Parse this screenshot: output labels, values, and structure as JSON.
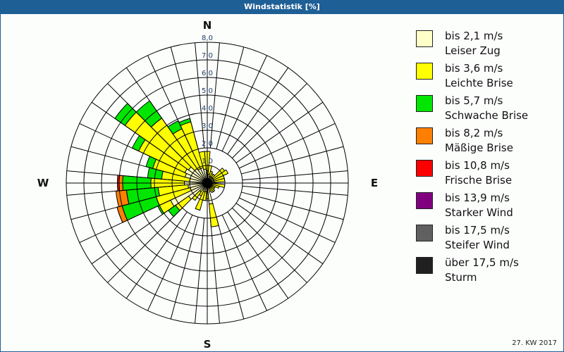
{
  "window": {
    "title": "Windstatistik [%]"
  },
  "footer": {
    "period": "27. KW 2017"
  },
  "compass": {
    "north": "N",
    "east": "E",
    "south": "S",
    "west": "W"
  },
  "chart_data": {
    "type": "wind-rose",
    "title": "Windstatistik [%]",
    "unit": "%",
    "radial_axis": {
      "min": 0,
      "max": 8.0,
      "ticks": [
        "1,0",
        "2,0",
        "3,0",
        "4,0",
        "5,0",
        "6,0",
        "7,0",
        "8,0"
      ],
      "grid": true
    },
    "sector_width_deg": 10,
    "legend_position": "right",
    "classes": [
      {
        "label": "bis 2,1 m/s",
        "name": "Leiser Zug",
        "color": "#ffffc8"
      },
      {
        "label": "bis 3,6 m/s",
        "name": "Leichte Brise",
        "color": "#ffff00"
      },
      {
        "label": "bis 5,7 m/s",
        "name": "Schwache Brise",
        "color": "#00e600"
      },
      {
        "label": "bis 8,2 m/s",
        "name": "Mäßige Brise",
        "color": "#ff8000"
      },
      {
        "label": "bis 10,8 m/s",
        "name": "Frische Brise",
        "color": "#ff0000"
      },
      {
        "label": "bis 13,9 m/s",
        "name": "Starker Wind",
        "color": "#800080"
      },
      {
        "label": "bis 17,5 m/s",
        "name": "Steifer Wind",
        "color": "#606060"
      },
      {
        "label": "über 17,5 m/s",
        "name": "Sturm",
        "color": "#202020"
      }
    ],
    "sectors_cumulative": [
      {
        "dir": 0,
        "bounds": [
          0.7,
          1.8
        ]
      },
      {
        "dir": 10,
        "bounds": [
          0.5,
          1.0
        ]
      },
      {
        "dir": 20,
        "bounds": [
          0.4,
          0.7
        ]
      },
      {
        "dir": 30,
        "bounds": [
          0.4,
          0.6
        ]
      },
      {
        "dir": 40,
        "bounds": [
          0.4,
          0.6
        ]
      },
      {
        "dir": 50,
        "bounds": [
          0.4,
          1.2
        ]
      },
      {
        "dir": 60,
        "bounds": [
          0.4,
          1.3
        ]
      },
      {
        "dir": 70,
        "bounds": [
          0.4,
          1.0
        ]
      },
      {
        "dir": 80,
        "bounds": [
          0.4,
          1.0
        ]
      },
      {
        "dir": 90,
        "bounds": [
          0.3,
          0.5
        ]
      },
      {
        "dir": 100,
        "bounds": [
          0.3,
          1.0
        ]
      },
      {
        "dir": 110,
        "bounds": [
          0.3,
          0.7
        ]
      },
      {
        "dir": 120,
        "bounds": [
          0.3,
          0.5
        ]
      },
      {
        "dir": 130,
        "bounds": [
          0.3,
          0.5
        ]
      },
      {
        "dir": 140,
        "bounds": [
          0.3,
          0.6
        ]
      },
      {
        "dir": 150,
        "bounds": [
          0.3,
          0.6
        ]
      },
      {
        "dir": 160,
        "bounds": [
          0.3,
          0.5
        ]
      },
      {
        "dir": 170,
        "bounds": [
          1.2,
          2.5
        ]
      },
      {
        "dir": 180,
        "bounds": [
          0.5,
          0.9
        ]
      },
      {
        "dir": 190,
        "bounds": [
          0.5,
          1.0
        ]
      },
      {
        "dir": 200,
        "bounds": [
          0.5,
          1.6
        ]
      },
      {
        "dir": 210,
        "bounds": [
          0.4,
          0.8
        ]
      },
      {
        "dir": 220,
        "bounds": [
          0.6,
          1.2
        ]
      },
      {
        "dir": 230,
        "bounds": [
          1.3,
          2.2,
          2.7
        ]
      },
      {
        "dir": 240,
        "bounds": [
          2.3,
          3.0,
          3.1
        ]
      },
      {
        "dir": 250,
        "bounds": [
          1.0,
          3.0,
          5.0,
          5.3,
          5.3
        ]
      },
      {
        "dir": 260,
        "bounds": [
          1.1,
          2.8,
          4.6,
          5.2
        ]
      },
      {
        "dir": 270,
        "bounds": [
          1.3,
          3.2,
          4.8,
          5.0,
          5.1
        ]
      },
      {
        "dir": 280,
        "bounds": [
          1.0,
          2.6,
          3.4
        ]
      },
      {
        "dir": 290,
        "bounds": [
          1.3,
          3.2,
          3.6
        ]
      },
      {
        "dir": 300,
        "bounds": [
          1.4,
          4.3,
          4.7
        ]
      },
      {
        "dir": 310,
        "bounds": [
          1.3,
          5.7,
          6.4
        ]
      },
      {
        "dir": 320,
        "bounds": [
          1.0,
          4.5,
          5.7
        ]
      },
      {
        "dir": 330,
        "bounds": [
          0.9,
          3.4,
          3.9
        ]
      },
      {
        "dir": 340,
        "bounds": [
          0.9,
          3.6,
          3.8
        ]
      },
      {
        "dir": 350,
        "bounds": [
          0.8,
          1.8
        ]
      }
    ]
  }
}
